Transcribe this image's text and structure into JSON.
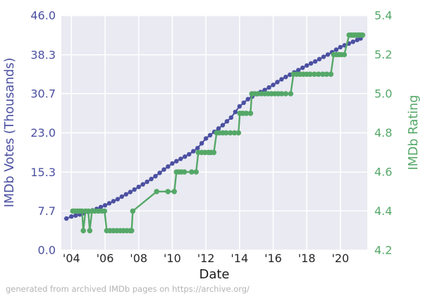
{
  "figure": {
    "xlabel": "Date",
    "ylabel_left": "IMDb Votes (Thousands)",
    "ylabel_right": "IMDb Rating",
    "footer": "generated from archived IMDb pages on https://archive.org/",
    "colors": {
      "votes": "#4b50a1",
      "rating": "#55a868",
      "plot_bg": "#eaeaf2",
      "grid": "#ffffff",
      "x_tick": "#262626",
      "footer": "#b3b3b3"
    }
  },
  "chart_data": {
    "type": "line",
    "title": "",
    "xlabel": "Date",
    "x_range": [
      2003.4,
      2021.6
    ],
    "x_ticks": [
      "'04",
      "'06",
      "'08",
      "'10",
      "'12",
      "'14",
      "'16",
      "'18",
      "'20"
    ],
    "x_tick_years": [
      2004,
      2006,
      2008,
      2010,
      2012,
      2014,
      2016,
      2018,
      2020
    ],
    "grid": true,
    "legend": "none",
    "series": [
      {
        "name": "IMDb Votes (Thousands)",
        "axis": "left",
        "color": "#4b50a1",
        "ylim": [
          0.0,
          46.0
        ],
        "yticks": [
          0.0,
          7.7,
          15.3,
          23.0,
          30.7,
          38.3,
          46.0
        ],
        "ytick_labels": [
          "0.0",
          "7.7",
          "15.3",
          "23.0",
          "30.7",
          "38.3",
          "46.0"
        ],
        "points": [
          [
            2003.7,
            6.2
          ],
          [
            2004.0,
            6.6
          ],
          [
            2004.25,
            6.8
          ],
          [
            2004.5,
            7.0
          ],
          [
            2004.75,
            7.25
          ],
          [
            2005.0,
            7.5
          ],
          [
            2005.25,
            7.8
          ],
          [
            2005.5,
            8.1
          ],
          [
            2005.75,
            8.45
          ],
          [
            2006.0,
            8.8
          ],
          [
            2006.25,
            9.2
          ],
          [
            2006.5,
            9.6
          ],
          [
            2006.75,
            10.0
          ],
          [
            2007.0,
            10.5
          ],
          [
            2007.25,
            10.95
          ],
          [
            2007.5,
            11.4
          ],
          [
            2007.75,
            11.9
          ],
          [
            2008.0,
            12.4
          ],
          [
            2008.25,
            12.9
          ],
          [
            2008.5,
            13.4
          ],
          [
            2008.75,
            13.95
          ],
          [
            2009.0,
            14.5
          ],
          [
            2009.25,
            15.15
          ],
          [
            2009.5,
            15.8
          ],
          [
            2009.75,
            16.4
          ],
          [
            2010.0,
            17.0
          ],
          [
            2010.25,
            17.45
          ],
          [
            2010.5,
            17.9
          ],
          [
            2010.75,
            18.35
          ],
          [
            2011.0,
            18.8
          ],
          [
            2011.25,
            19.4
          ],
          [
            2011.5,
            20.0
          ],
          [
            2011.75,
            20.95
          ],
          [
            2012.0,
            21.9
          ],
          [
            2012.25,
            22.55
          ],
          [
            2012.5,
            23.2
          ],
          [
            2012.75,
            23.85
          ],
          [
            2013.0,
            24.5
          ],
          [
            2013.25,
            25.25
          ],
          [
            2013.5,
            26.0
          ],
          [
            2013.75,
            27.1
          ],
          [
            2014.0,
            28.2
          ],
          [
            2014.25,
            28.9
          ],
          [
            2014.5,
            29.6
          ],
          [
            2014.75,
            30.1
          ],
          [
            2015.0,
            30.6
          ],
          [
            2015.25,
            31.0
          ],
          [
            2015.5,
            31.4
          ],
          [
            2015.75,
            31.9
          ],
          [
            2016.0,
            32.4
          ],
          [
            2016.25,
            32.95
          ],
          [
            2016.5,
            33.5
          ],
          [
            2016.75,
            33.95
          ],
          [
            2017.0,
            34.4
          ],
          [
            2017.25,
            34.85
          ],
          [
            2017.5,
            35.3
          ],
          [
            2017.75,
            35.75
          ],
          [
            2018.0,
            36.2
          ],
          [
            2018.25,
            36.6
          ],
          [
            2018.5,
            37.0
          ],
          [
            2018.75,
            37.45
          ],
          [
            2019.0,
            37.9
          ],
          [
            2019.25,
            38.35
          ],
          [
            2019.5,
            38.8
          ],
          [
            2019.75,
            39.3
          ],
          [
            2020.0,
            39.8
          ],
          [
            2020.25,
            40.15
          ],
          [
            2020.5,
            40.5
          ],
          [
            2020.75,
            40.85
          ],
          [
            2021.0,
            41.2
          ],
          [
            2021.2,
            41.5
          ]
        ]
      },
      {
        "name": "IMDb Rating",
        "axis": "right",
        "color": "#55a868",
        "ylim": [
          4.2,
          5.4
        ],
        "yticks": [
          4.2,
          4.4,
          4.6,
          4.8,
          5.0,
          5.2,
          5.4
        ],
        "ytick_labels": [
          "4.2",
          "4.4",
          "4.6",
          "4.8",
          "5.0",
          "5.2",
          "5.4"
        ],
        "points": [
          [
            2004.08,
            4.4
          ],
          [
            2004.2,
            4.4
          ],
          [
            2004.35,
            4.4
          ],
          [
            2004.5,
            4.4
          ],
          [
            2004.63,
            4.4
          ],
          [
            2004.71,
            4.3
          ],
          [
            2004.84,
            4.4
          ],
          [
            2005.0,
            4.4
          ],
          [
            2005.09,
            4.3
          ],
          [
            2005.22,
            4.4
          ],
          [
            2005.4,
            4.4
          ],
          [
            2005.6,
            4.4
          ],
          [
            2005.8,
            4.4
          ],
          [
            2005.97,
            4.4
          ],
          [
            2006.1,
            4.3
          ],
          [
            2006.3,
            4.3
          ],
          [
            2006.5,
            4.3
          ],
          [
            2006.7,
            4.3
          ],
          [
            2006.9,
            4.3
          ],
          [
            2007.1,
            4.3
          ],
          [
            2007.3,
            4.3
          ],
          [
            2007.5,
            4.3
          ],
          [
            2007.58,
            4.3
          ],
          [
            2007.65,
            4.4
          ],
          [
            2009.07,
            4.5
          ],
          [
            2009.74,
            4.5
          ],
          [
            2010.12,
            4.5
          ],
          [
            2010.25,
            4.6
          ],
          [
            2010.4,
            4.6
          ],
          [
            2010.55,
            4.6
          ],
          [
            2010.72,
            4.6
          ],
          [
            2011.15,
            4.6
          ],
          [
            2011.42,
            4.6
          ],
          [
            2011.55,
            4.7
          ],
          [
            2011.75,
            4.7
          ],
          [
            2011.95,
            4.7
          ],
          [
            2012.15,
            4.7
          ],
          [
            2012.3,
            4.7
          ],
          [
            2012.47,
            4.7
          ],
          [
            2012.64,
            4.8
          ],
          [
            2012.8,
            4.8
          ],
          [
            2013.0,
            4.8
          ],
          [
            2013.2,
            4.8
          ],
          [
            2013.45,
            4.8
          ],
          [
            2013.7,
            4.8
          ],
          [
            2013.94,
            4.8
          ],
          [
            2014.02,
            4.9
          ],
          [
            2014.2,
            4.9
          ],
          [
            2014.4,
            4.9
          ],
          [
            2014.65,
            4.9
          ],
          [
            2014.73,
            5.0
          ],
          [
            2014.9,
            5.0
          ],
          [
            2015.1,
            5.0
          ],
          [
            2015.3,
            5.0
          ],
          [
            2015.5,
            5.0
          ],
          [
            2015.7,
            5.0
          ],
          [
            2015.9,
            5.0
          ],
          [
            2016.1,
            5.0
          ],
          [
            2016.3,
            5.0
          ],
          [
            2016.5,
            5.0
          ],
          [
            2016.75,
            5.0
          ],
          [
            2017.04,
            5.0
          ],
          [
            2017.21,
            5.1
          ],
          [
            2017.4,
            5.1
          ],
          [
            2017.6,
            5.1
          ],
          [
            2017.8,
            5.1
          ],
          [
            2018.0,
            5.1
          ],
          [
            2018.2,
            5.1
          ],
          [
            2018.45,
            5.1
          ],
          [
            2018.7,
            5.1
          ],
          [
            2018.95,
            5.1
          ],
          [
            2019.18,
            5.1
          ],
          [
            2019.43,
            5.1
          ],
          [
            2019.6,
            5.2
          ],
          [
            2019.75,
            5.2
          ],
          [
            2019.9,
            5.2
          ],
          [
            2020.05,
            5.2
          ],
          [
            2020.23,
            5.2
          ],
          [
            2020.52,
            5.3
          ],
          [
            2020.65,
            5.3
          ],
          [
            2020.78,
            5.3
          ],
          [
            2020.9,
            5.3
          ],
          [
            2021.02,
            5.3
          ],
          [
            2021.12,
            5.3
          ],
          [
            2021.22,
            5.3
          ],
          [
            2021.32,
            5.3
          ]
        ]
      }
    ]
  }
}
